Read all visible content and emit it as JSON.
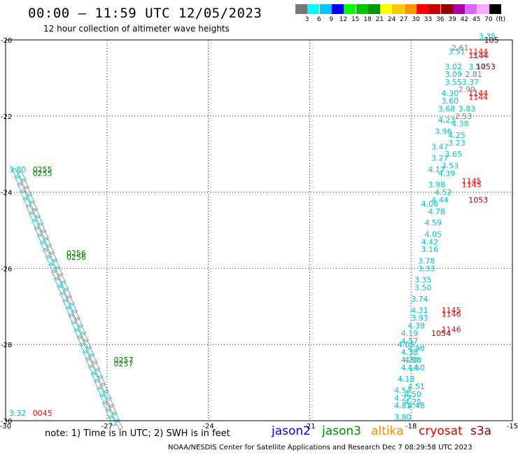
{
  "header": {
    "title": "00:00 — 11:59 UTC 12/05/2023",
    "subtitle": "12 hour collection of altimeter wave heights"
  },
  "legend": {
    "colors": [
      "#777777",
      "#00ffff",
      "#00c8ff",
      "#0000ff",
      "#00ff00",
      "#00c800",
      "#009600",
      "#ffff00",
      "#ffc800",
      "#ff9600",
      "#ff0000",
      "#c80000",
      "#960000",
      "#aa00aa",
      "#dc64ff",
      "#ffaaff",
      "#000000"
    ],
    "labels": [
      "3",
      "6",
      "9",
      "12",
      "15",
      "18",
      "21",
      "24",
      "27",
      "30",
      "33",
      "36",
      "39",
      "42",
      "45",
      "70",
      "(ft)"
    ]
  },
  "map": {
    "lon_min": -30,
    "lon_max": -15,
    "lat_min": -30,
    "lat_max": -20,
    "x_ticks": [
      "-30",
      "-27",
      "-24",
      "-21",
      "-18",
      "-15"
    ],
    "y_ticks": [
      "-20",
      "-22",
      "-24",
      "-26",
      "-28",
      "-30"
    ],
    "time_labels": [
      {
        "text": "0255",
        "color": "#008000",
        "lon": -29.2,
        "lat": -23.4
      },
      {
        "text": "0255",
        "color": "#008000",
        "lon": -29.2,
        "lat": -23.5
      },
      {
        "text": "0256",
        "color": "#008000",
        "lon": -28.2,
        "lat": -25.6
      },
      {
        "text": "0256",
        "color": "#008000",
        "lon": -28.2,
        "lat": -25.7
      },
      {
        "text": "0257",
        "color": "#008000",
        "lon": -26.8,
        "lat": -28.4
      },
      {
        "text": "0257",
        "color": "#008000",
        "lon": -26.8,
        "lat": -28.5
      },
      {
        "text": "0045",
        "color": "#ff0000",
        "lon": -29.2,
        "lat": -29.8
      },
      {
        "text": "1144",
        "color": "#ff0000",
        "lon": -16.3,
        "lat": -20.3
      },
      {
        "text": "1144",
        "color": "#ff0000",
        "lon": -16.3,
        "lat": -20.4
      },
      {
        "text": "1144",
        "color": "#ff0000",
        "lon": -16.3,
        "lat": -21.4
      },
      {
        "text": "1144",
        "color": "#ff0000",
        "lon": -16.3,
        "lat": -21.5
      },
      {
        "text": "1145",
        "color": "#ff0000",
        "lon": -16.5,
        "lat": -23.7
      },
      {
        "text": "1145",
        "color": "#ff0000",
        "lon": -16.5,
        "lat": -23.8
      },
      {
        "text": "1145",
        "color": "#ff0000",
        "lon": -17.1,
        "lat": -27.1
      },
      {
        "text": "1146",
        "color": "#ff0000",
        "lon": -17.1,
        "lat": -27.2
      },
      {
        "text": "1146",
        "color": "#ff0000",
        "lon": -17.1,
        "lat": -27.6
      },
      {
        "text": "105",
        "color": "#960000",
        "lon": -15.4,
        "lat": -20.0
      },
      {
        "text": "1053",
        "color": "#960000",
        "lon": -15.5,
        "lat": -20.7
      },
      {
        "text": "1053",
        "color": "#960000",
        "lon": -16.3,
        "lat": -24.2
      },
      {
        "text": "1054",
        "color": "#960000",
        "lon": -17.4,
        "lat": -27.7
      }
    ],
    "wave_labels": [
      {
        "text": "3.35",
        "color": "#00c8c8",
        "lon": -16.0,
        "lat": -19.9
      },
      {
        "text": "2.61",
        "color": "#808080",
        "lon": -16.8,
        "lat": -20.2
      },
      {
        "text": "3.51",
        "color": "#00c8c8",
        "lon": -16.9,
        "lat": -20.3
      },
      {
        "text": "3.36",
        "color": "#00c8c8",
        "lon": -16.2,
        "lat": -20.4
      },
      {
        "text": "3.02",
        "color": "#00c8c8",
        "lon": -17.0,
        "lat": -20.7
      },
      {
        "text": "3.57",
        "color": "#00c8c8",
        "lon": -16.3,
        "lat": -20.7
      },
      {
        "text": "3.09",
        "color": "#00c8c8",
        "lon": -17.0,
        "lat": -20.9
      },
      {
        "text": "2.81",
        "color": "#808080",
        "lon": -16.4,
        "lat": -20.9
      },
      {
        "text": "3.55",
        "color": "#00c8c8",
        "lon": -17.0,
        "lat": -21.1
      },
      {
        "text": "3.37",
        "color": "#00c8c8",
        "lon": -16.5,
        "lat": -21.1
      },
      {
        "text": "2.99",
        "color": "#808080",
        "lon": -16.6,
        "lat": -21.3
      },
      {
        "text": "4.30",
        "color": "#00c8c8",
        "lon": -17.1,
        "lat": -21.4
      },
      {
        "text": "3.60",
        "color": "#00c8c8",
        "lon": -17.1,
        "lat": -21.6
      },
      {
        "text": "3.83",
        "color": "#00c8c8",
        "lon": -16.6,
        "lat": -21.8
      },
      {
        "text": "3.68",
        "color": "#00c8c8",
        "lon": -17.2,
        "lat": -21.8
      },
      {
        "text": "2.53",
        "color": "#808080",
        "lon": -16.7,
        "lat": -22.0
      },
      {
        "text": "4.23",
        "color": "#00c8c8",
        "lon": -17.2,
        "lat": -22.1
      },
      {
        "text": "4.38",
        "color": "#00c8c8",
        "lon": -16.8,
        "lat": -22.2
      },
      {
        "text": "3.96",
        "color": "#00c8c8",
        "lon": -17.3,
        "lat": -22.4
      },
      {
        "text": "4.25",
        "color": "#00c8c8",
        "lon": -16.9,
        "lat": -22.5
      },
      {
        "text": "3.23",
        "color": "#00c8c8",
        "lon": -16.9,
        "lat": -22.7
      },
      {
        "text": "3.47",
        "color": "#00c8c8",
        "lon": -17.4,
        "lat": -22.8
      },
      {
        "text": "3.65",
        "color": "#00c8c8",
        "lon": -17.0,
        "lat": -23.0
      },
      {
        "text": "3.27",
        "color": "#00c8c8",
        "lon": -17.4,
        "lat": -23.1
      },
      {
        "text": "3.53",
        "color": "#00c8c8",
        "lon": -17.1,
        "lat": -23.3
      },
      {
        "text": "4.17",
        "color": "#00c8c8",
        "lon": -17.5,
        "lat": -23.4
      },
      {
        "text": "4.39",
        "color": "#00c8c8",
        "lon": -17.2,
        "lat": -23.5
      },
      {
        "text": "3.98",
        "color": "#00c8c8",
        "lon": -17.5,
        "lat": -23.8
      },
      {
        "text": "4.52",
        "color": "#00c8c8",
        "lon": -17.3,
        "lat": -24.0
      },
      {
        "text": "4.44",
        "color": "#00c8c8",
        "lon": -17.4,
        "lat": -24.2
      },
      {
        "text": "4.06",
        "color": "#00c8c8",
        "lon": -17.7,
        "lat": -24.3
      },
      {
        "text": "4.78",
        "color": "#00c8c8",
        "lon": -17.5,
        "lat": -24.5
      },
      {
        "text": "4.59",
        "color": "#00c8c8",
        "lon": -17.6,
        "lat": -24.8
      },
      {
        "text": "4.05",
        "color": "#00c8c8",
        "lon": -17.6,
        "lat": -25.1
      },
      {
        "text": "4.42",
        "color": "#00c8c8",
        "lon": -17.7,
        "lat": -25.3
      },
      {
        "text": "3.16",
        "color": "#00c8c8",
        "lon": -17.7,
        "lat": -25.5
      },
      {
        "text": "3.78",
        "color": "#00c8c8",
        "lon": -17.8,
        "lat": -25.8
      },
      {
        "text": "3.33",
        "color": "#00c8c8",
        "lon": -17.8,
        "lat": -26.0
      },
      {
        "text": "3.35",
        "color": "#00c8c8",
        "lon": -17.9,
        "lat": -26.3
      },
      {
        "text": "3.50",
        "color": "#00c8c8",
        "lon": -17.9,
        "lat": -26.5
      },
      {
        "text": "3.74",
        "color": "#00c8c8",
        "lon": -18.0,
        "lat": -26.8
      },
      {
        "text": "4.31",
        "color": "#00c8c8",
        "lon": -18.0,
        "lat": -27.1
      },
      {
        "text": "3.93",
        "color": "#00c8c8",
        "lon": -18.0,
        "lat": -27.3
      },
      {
        "text": "4.39",
        "color": "#00c8c8",
        "lon": -18.1,
        "lat": -27.5
      },
      {
        "text": "4.19",
        "color": "#00c8c8",
        "lon": -18.3,
        "lat": -27.7
      },
      {
        "text": "4.57",
        "color": "#00c8c8",
        "lon": -18.3,
        "lat": -27.9
      },
      {
        "text": "4.05",
        "color": "#00c8c8",
        "lon": -18.4,
        "lat": -28.0
      },
      {
        "text": "4.38",
        "color": "#00c8c8",
        "lon": -18.3,
        "lat": -28.2
      },
      {
        "text": "4.98",
        "color": "#00c8c8",
        "lon": -18.1,
        "lat": -28.1
      },
      {
        "text": "4.08",
        "color": "#00c8c8",
        "lon": -18.2,
        "lat": -28.4
      },
      {
        "text": "4.20",
        "color": "#00c8c8",
        "lon": -18.3,
        "lat": -28.4
      },
      {
        "text": "4.14",
        "color": "#00c8c8",
        "lon": -18.3,
        "lat": -28.6
      },
      {
        "text": "4.50",
        "color": "#00c8c8",
        "lon": -18.1,
        "lat": -28.6
      },
      {
        "text": "4.18",
        "color": "#00c8c8",
        "lon": -18.4,
        "lat": -28.9
      },
      {
        "text": "4.51",
        "color": "#00c8c8",
        "lon": -18.1,
        "lat": -29.1
      },
      {
        "text": "4.54",
        "color": "#00c8c8",
        "lon": -18.5,
        "lat": -29.2
      },
      {
        "text": "4.50",
        "color": "#00c8c8",
        "lon": -18.2,
        "lat": -29.3
      },
      {
        "text": "4.27",
        "color": "#00c8c8",
        "lon": -18.5,
        "lat": -29.4
      },
      {
        "text": "4.25",
        "color": "#00c8c8",
        "lon": -18.2,
        "lat": -29.5
      },
      {
        "text": "4.81",
        "color": "#00c8c8",
        "lon": -18.5,
        "lat": -29.6
      },
      {
        "text": "4.48",
        "color": "#00c8c8",
        "lon": -18.1,
        "lat": -29.6
      },
      {
        "text": "3.80",
        "color": "#00c8c8",
        "lon": -18.5,
        "lat": -29.9
      },
      {
        "text": "3.80",
        "color": "#00c8c8",
        "lon": -29.9,
        "lat": -23.4
      },
      {
        "text": "3.32",
        "color": "#00c8c8",
        "lon": -29.9,
        "lat": -29.8
      }
    ],
    "track_left_colors": [
      "#00c8c8",
      "#808080"
    ],
    "track_left_start": {
      "lon": -29.8,
      "lat": -23.4
    },
    "track_left_end": {
      "lon": -26.9,
      "lat": -30.0
    }
  },
  "footer": {
    "note": "note: 1) Time is in UTC; 2) SWH is in feet",
    "missions": [
      {
        "name": "jason2",
        "color": "#0000dc"
      },
      {
        "name": "jason3",
        "color": "#008c00"
      },
      {
        "name": "altika",
        "color": "#ff8c00"
      },
      {
        "name": "cryosat",
        "color": "#dc0000"
      },
      {
        "name": "s3a",
        "color": "#960000"
      }
    ],
    "credit": "NOAA/NESDIS Center for Satellite Applications and Research   Dec  7 08:29:58 UTC 2023"
  }
}
